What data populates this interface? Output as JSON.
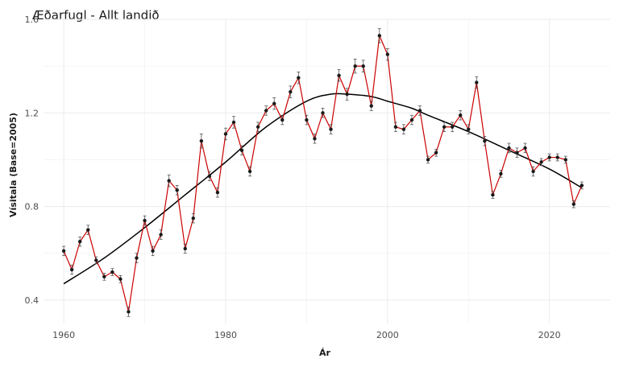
{
  "chart_data": {
    "type": "line",
    "title": "Æðarfugl - Allt landið",
    "xlabel": "Ár",
    "ylabel": "Vísitala (Base=2005)",
    "xlim": [
      1957.5,
      2027.5
    ],
    "ylim": [
      0.3,
      1.6
    ],
    "xticks": [
      1960,
      1980,
      2000,
      2020
    ],
    "yticks": [
      0.4,
      0.8,
      1.2,
      1.6
    ],
    "grid": true,
    "colors": {
      "observed": "#cc0000",
      "points": "#1a1a1a",
      "trend": "#000000",
      "grid": "#ebebeb"
    },
    "series": [
      {
        "kind": "observed",
        "x": [
          1960,
          1961,
          1962,
          1963,
          1964,
          1965,
          1966,
          1967,
          1968,
          1969,
          1970,
          1971,
          1972,
          1973,
          1974,
          1975,
          1976,
          1977,
          1978,
          1979,
          1980,
          1981,
          1982,
          1983,
          1984,
          1985,
          1986,
          1987,
          1988,
          1989,
          1990,
          1991,
          1992,
          1993,
          1994,
          1995,
          1996,
          1997,
          1998,
          1999,
          2000,
          2001,
          2002,
          2003,
          2004,
          2005,
          2006,
          2007,
          2008,
          2009,
          2010,
          2011,
          2012,
          2013,
          2014,
          2015,
          2016,
          2017,
          2018,
          2019,
          2020,
          2021,
          2022,
          2023,
          2024
        ],
        "values": [
          0.61,
          0.53,
          0.65,
          0.7,
          0.57,
          0.5,
          0.52,
          0.49,
          0.35,
          0.58,
          0.74,
          0.61,
          0.68,
          0.91,
          0.87,
          0.62,
          0.75,
          1.08,
          0.93,
          0.86,
          1.11,
          1.16,
          1.04,
          0.95,
          1.14,
          1.21,
          1.24,
          1.17,
          1.29,
          1.35,
          1.17,
          1.09,
          1.2,
          1.13,
          1.36,
          1.28,
          1.4,
          1.4,
          1.23,
          1.53,
          1.45,
          1.14,
          1.13,
          1.17,
          1.21,
          1.0,
          1.03,
          1.14,
          1.14,
          1.19,
          1.13,
          1.33,
          1.08,
          0.85,
          0.94,
          1.05,
          1.03,
          1.05,
          0.95,
          0.99,
          1.01,
          1.01,
          1.0,
          0.81,
          0.89
        ],
        "errors": [
          0.02,
          0.02,
          0.02,
          0.02,
          0.015,
          0.015,
          0.015,
          0.015,
          0.02,
          0.02,
          0.02,
          0.02,
          0.02,
          0.025,
          0.02,
          0.02,
          0.02,
          0.03,
          0.02,
          0.02,
          0.025,
          0.025,
          0.02,
          0.02,
          0.02,
          0.02,
          0.025,
          0.02,
          0.025,
          0.025,
          0.02,
          0.02,
          0.02,
          0.02,
          0.025,
          0.025,
          0.03,
          0.025,
          0.02,
          0.03,
          0.025,
          0.02,
          0.02,
          0.02,
          0.02,
          0.015,
          0.015,
          0.02,
          0.02,
          0.02,
          0.02,
          0.025,
          0.02,
          0.015,
          0.015,
          0.02,
          0.02,
          0.02,
          0.02,
          0.015,
          0.015,
          0.015,
          0.015,
          0.015,
          0.015
        ]
      },
      {
        "kind": "trend",
        "x": [
          1960,
          1965,
          1970,
          1975,
          1980,
          1985,
          1990,
          1993,
          1995,
          1998,
          2000,
          2003,
          2005,
          2010,
          2015,
          2020,
          2024
        ],
        "values": [
          0.47,
          0.58,
          0.71,
          0.85,
          0.99,
          1.14,
          1.25,
          1.28,
          1.28,
          1.27,
          1.25,
          1.22,
          1.19,
          1.12,
          1.04,
          0.96,
          0.88
        ]
      }
    ]
  }
}
